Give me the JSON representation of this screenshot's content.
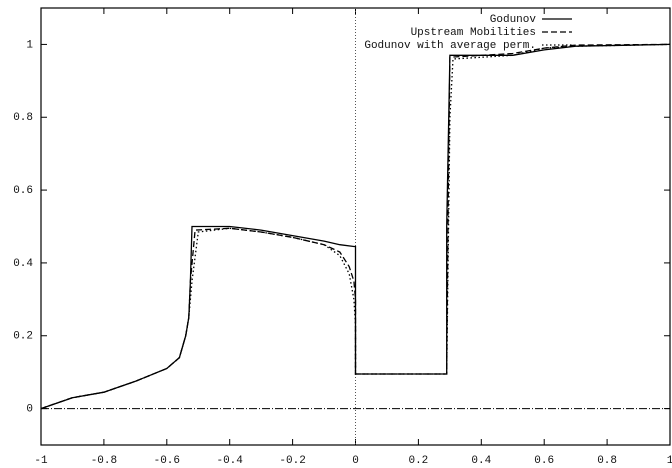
{
  "chart_data": {
    "type": "line",
    "xlim": [
      -1,
      1
    ],
    "xticks": [
      -1,
      -0.8,
      -0.6,
      -0.4,
      -0.2,
      0,
      0.2,
      0.4,
      0.6,
      0.8,
      1
    ],
    "ylim": [
      -0.1,
      1.1
    ],
    "yticks": [
      0,
      0.2,
      0.4,
      0.6,
      0.8,
      1
    ],
    "zeroaxis": true,
    "legend": "top-right",
    "series": [
      {
        "name": "Godunov",
        "color": "#000000",
        "dash": "solid",
        "x": [
          -1,
          -0.9,
          -0.8,
          -0.7,
          -0.6,
          -0.56,
          -0.54,
          -0.53,
          -0.525,
          -0.52,
          -0.4,
          -0.3,
          -0.2,
          -0.1,
          -0.05,
          -0.005,
          0,
          0,
          0.29,
          0.29,
          0.3,
          0.5,
          0.6,
          0.7,
          1
        ],
        "values": [
          0.0,
          0.03,
          0.045,
          0.075,
          0.11,
          0.14,
          0.2,
          0.25,
          0.35,
          0.5,
          0.5,
          0.49,
          0.475,
          0.46,
          0.45,
          0.445,
          0.445,
          0.095,
          0.095,
          0.5,
          0.97,
          0.97,
          0.985,
          0.995,
          1.0
        ]
      },
      {
        "name": "Upstream Mobilities",
        "color": "#000000",
        "dash": "dashed",
        "x": [
          -1,
          -0.9,
          -0.8,
          -0.7,
          -0.6,
          -0.56,
          -0.54,
          -0.53,
          -0.525,
          -0.51,
          -0.4,
          -0.3,
          -0.2,
          -0.1,
          -0.05,
          -0.02,
          -0.005,
          0,
          0,
          0.29,
          0.295,
          0.3,
          0.5,
          0.6,
          0.7,
          1
        ],
        "values": [
          0.0,
          0.03,
          0.045,
          0.075,
          0.11,
          0.14,
          0.2,
          0.25,
          0.35,
          0.49,
          0.495,
          0.485,
          0.47,
          0.45,
          0.43,
          0.39,
          0.35,
          0.3,
          0.095,
          0.095,
          0.6,
          0.965,
          0.975,
          0.99,
          0.998,
          1.0
        ]
      },
      {
        "name": "Godunov with average perm.",
        "color": "#000000",
        "dash": "dotted",
        "x": [
          -1,
          -0.9,
          -0.8,
          -0.7,
          -0.6,
          -0.56,
          -0.54,
          -0.53,
          -0.52,
          -0.5,
          -0.4,
          -0.3,
          -0.2,
          -0.1,
          -0.05,
          -0.02,
          -0.005,
          0,
          0,
          0.29,
          0.3,
          0.31,
          0.5,
          0.6,
          0.7,
          1
        ],
        "values": [
          0.0,
          0.03,
          0.045,
          0.075,
          0.11,
          0.14,
          0.2,
          0.25,
          0.35,
          0.485,
          0.495,
          0.485,
          0.47,
          0.45,
          0.42,
          0.37,
          0.3,
          0.23,
          0.095,
          0.095,
          0.8,
          0.96,
          0.97,
          0.99,
          0.995,
          1.0
        ]
      }
    ]
  }
}
